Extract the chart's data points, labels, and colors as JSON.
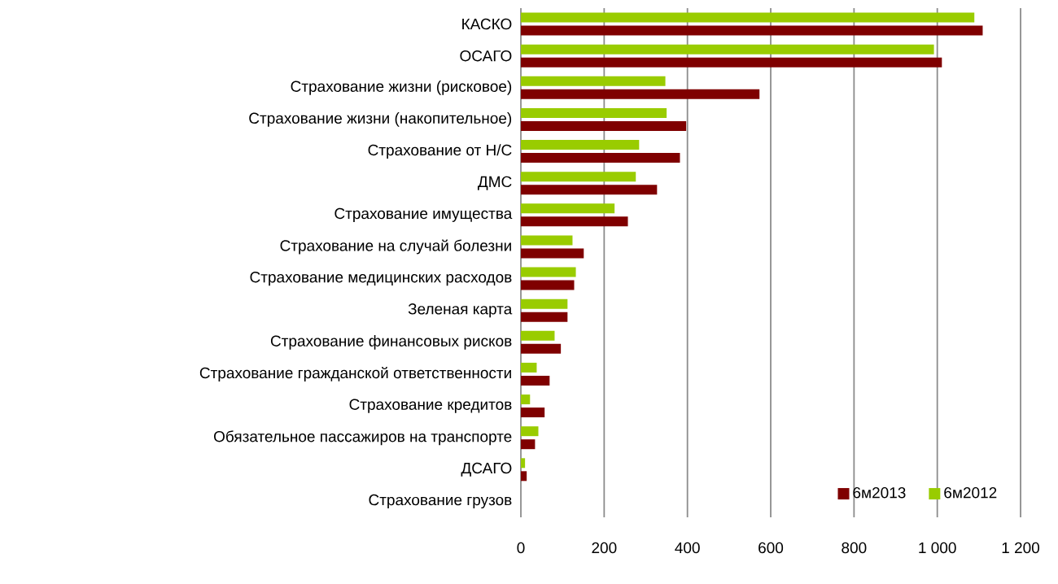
{
  "chart_data": {
    "type": "bar",
    "orientation": "horizontal",
    "categories": [
      "КАСКО",
      "ОСАГО",
      "Страхование жизни (рисковое)",
      "Страхование жизни (накопительное)",
      "Страхование от Н/С",
      "ДМС",
      "Страхование имущества",
      "Страхование на случай болезни",
      "Страхование медицинских расходов",
      "Зеленая карта",
      "Страхование финансовых рисков",
      "Страхование гражданской ответственности",
      "Страхование кредитов",
      "Обязательное пассажиров на транспорте",
      "ДСАГО",
      "Страхование грузов"
    ],
    "series": [
      {
        "name": "6м2013",
        "color": "#7f0000",
        "values": [
          1109,
          1011,
          573,
          397,
          382,
          327,
          257,
          151,
          128,
          112,
          96,
          69,
          57,
          34,
          14,
          null
        ]
      },
      {
        "name": "6м2012",
        "color": "#99cc00",
        "values": [
          1089,
          992,
          347,
          350,
          284,
          276,
          225,
          124,
          132,
          112,
          81,
          38,
          22,
          42,
          10,
          null
        ]
      }
    ],
    "xlim": [
      0,
      1200
    ],
    "xticks": [
      0,
      200,
      400,
      600,
      800,
      {
        "value": 1000,
        "label": "1 000"
      },
      {
        "value": 1200,
        "label": "1 200"
      }
    ],
    "grid": "x",
    "legend": "bottom right"
  }
}
